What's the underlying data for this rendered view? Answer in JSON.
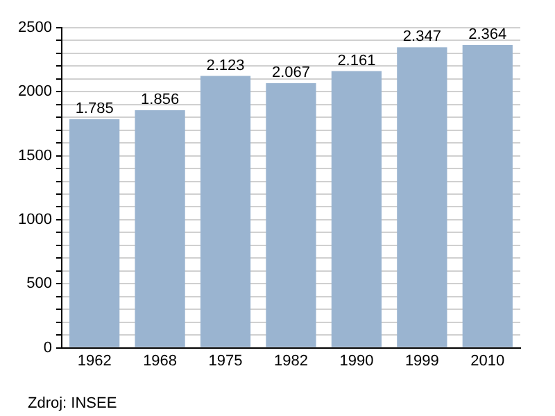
{
  "chart_data": {
    "type": "bar",
    "categories": [
      "1962",
      "1968",
      "1975",
      "1982",
      "1990",
      "1999",
      "2010"
    ],
    "values": [
      1785,
      1856,
      2123,
      2067,
      2161,
      2347,
      2364
    ],
    "value_labels": [
      "1.785",
      "1.856",
      "2.123",
      "2.067",
      "2.161",
      "2.347",
      "2.364"
    ],
    "color": "#9ab4d0",
    "ylim": [
      0,
      2500
    ],
    "yticks": [
      0,
      {
        "value": 100,
        "label": null
      },
      {
        "value": 200,
        "label": null
      },
      {
        "value": 300,
        "label": null
      },
      {
        "value": 400,
        "label": null
      },
      500,
      {
        "value": 600,
        "label": null
      },
      {
        "value": 700,
        "label": null
      },
      {
        "value": 800,
        "label": null
      },
      {
        "value": 900,
        "label": null
      },
      1000,
      {
        "value": 1100,
        "label": null
      },
      {
        "value": 1200,
        "label": null
      },
      {
        "value": 1300,
        "label": null
      },
      {
        "value": 1400,
        "label": null
      },
      1500,
      {
        "value": 1600,
        "label": null
      },
      {
        "value": 1700,
        "label": null
      },
      {
        "value": 1800,
        "label": null
      },
      {
        "value": 1900,
        "label": null
      },
      2000,
      {
        "value": 2100,
        "label": null
      },
      {
        "value": 2200,
        "label": null
      },
      {
        "value": 2300,
        "label": null
      },
      {
        "value": 2400,
        "label": null
      },
      2500
    ],
    "grid": "y",
    "annotations": [
      "Zdroj: INSEE"
    ]
  }
}
